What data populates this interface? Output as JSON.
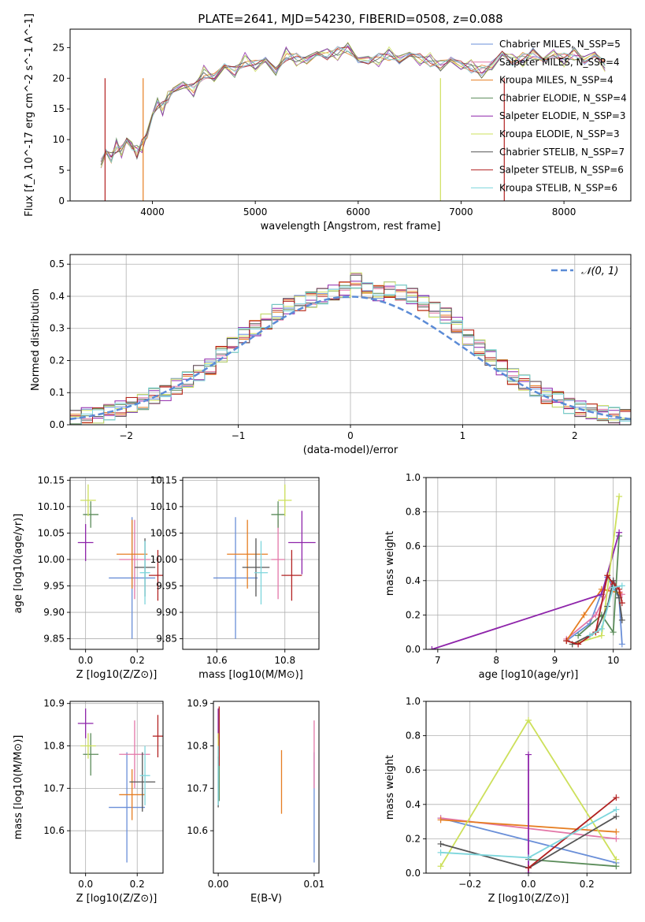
{
  "title": "PLATE=2641, MJD=54230, FIBERID=0508, z=0.088",
  "series_names": [
    "Chabrier MILES, N_SSP=5",
    "Salpeter MILES, N_SSP=4",
    "Kroupa MILES, N_SSP=4",
    "Chabrier ELODIE, N_SSP=4",
    "Salpeter ELODIE, N_SSP=3",
    "Kroupa ELODIE, N_SSP=3",
    "Chabrier STELIB, N_SSP=7",
    "Salpeter STELIB, N_SSP=6",
    "Kroupa STELIB, N_SSP=6"
  ],
  "series_colors": [
    "#6a8fd8",
    "#e377a8",
    "#e67e22",
    "#5b8c5a",
    "#8e24aa",
    "#cde05b",
    "#555555",
    "#b22222",
    "#7dd6dc"
  ],
  "chart_data": [
    {
      "type": "line",
      "title": "PLATE=2641, MJD=54230, FIBERID=0508, z=0.088",
      "xlabel": "wavelength [Angstrom, rest frame]",
      "ylabel": "Flux [f_λ 10^-17 erg cm^-2 s^-1 A^-1]",
      "xlim": [
        3200,
        8650
      ],
      "ylim": [
        0,
        28
      ],
      "xticks": [
        4000,
        5000,
        6000,
        7000,
        8000
      ],
      "yticks": [
        0,
        5,
        10,
        15,
        20,
        25
      ],
      "grid": false,
      "legend": "right",
      "x": [
        3500,
        3550,
        3600,
        3650,
        3700,
        3750,
        3800,
        3850,
        3900,
        3950,
        4000,
        4050,
        4100,
        4150,
        4200,
        4300,
        4400,
        4500,
        4600,
        4700,
        4800,
        4900,
        5000,
        5100,
        5200,
        5300,
        5400,
        5500,
        5600,
        5700,
        5800,
        5900,
        6000,
        6100,
        6200,
        6300,
        6400,
        6500,
        6600,
        6700,
        6800,
        6900,
        7000,
        7100,
        7200,
        7300,
        7400,
        7500,
        7600,
        7700,
        7800,
        7900,
        8000,
        8100,
        8200,
        8300,
        8400
      ],
      "y": [
        6,
        8,
        7,
        9,
        8,
        10,
        9,
        8,
        9,
        11,
        14,
        16,
        15,
        17,
        18,
        19,
        18,
        21,
        20,
        22,
        21,
        23,
        22,
        23,
        21,
        24,
        23,
        23,
        24,
        24,
        24,
        25,
        23,
        23,
        23,
        24,
        23,
        24,
        23,
        23,
        22,
        23,
        22,
        22,
        21,
        22,
        24,
        23,
        23,
        24,
        23,
        24,
        23,
        24,
        23,
        24,
        22
      ]
    },
    {
      "type": "line",
      "xlabel": "(data-model)/error",
      "ylabel": "Normed distribution",
      "xlim": [
        -2.5,
        2.5
      ],
      "ylim": [
        0,
        0.53
      ],
      "xticks": [
        -2,
        -1,
        0,
        1,
        2
      ],
      "yticks": [
        0.0,
        0.1,
        0.2,
        0.3,
        0.4,
        0.5
      ],
      "grid": true,
      "legend": "top-right",
      "series": [
        {
          "name": "𝒩(0, 1)",
          "function": "gaussian",
          "mean": 0,
          "sigma": 1
        }
      ],
      "histogram_centers": [
        -2.45,
        -2.35,
        -2.25,
        -2.15,
        -2.05,
        -1.95,
        -1.85,
        -1.75,
        -1.65,
        -1.55,
        -1.45,
        -1.35,
        -1.25,
        -1.15,
        -1.05,
        -0.95,
        -0.85,
        -0.75,
        -0.65,
        -0.55,
        -0.45,
        -0.35,
        -0.25,
        -0.15,
        -0.05,
        0.05,
        0.15,
        0.25,
        0.35,
        0.45,
        0.55,
        0.65,
        0.75,
        0.85,
        0.95,
        1.05,
        1.15,
        1.25,
        1.35,
        1.45,
        1.55,
        1.65,
        1.75,
        1.85,
        1.95,
        2.05,
        2.15,
        2.25,
        2.35,
        2.45
      ],
      "histogram_values": [
        0.02,
        0.03,
        0.03,
        0.04,
        0.05,
        0.06,
        0.07,
        0.09,
        0.1,
        0.12,
        0.14,
        0.16,
        0.18,
        0.22,
        0.25,
        0.28,
        0.3,
        0.32,
        0.35,
        0.37,
        0.38,
        0.39,
        0.4,
        0.41,
        0.42,
        0.45,
        0.42,
        0.41,
        0.42,
        0.41,
        0.4,
        0.38,
        0.36,
        0.34,
        0.31,
        0.27,
        0.24,
        0.21,
        0.18,
        0.15,
        0.13,
        0.11,
        0.09,
        0.08,
        0.06,
        0.05,
        0.04,
        0.035,
        0.03,
        0.025
      ]
    },
    {
      "type": "scatter",
      "xlabel": "Z [log10(Z/Z⊙)]",
      "ylabel": "age  [log10(age/yr)]",
      "xlim": [
        -0.06,
        0.3
      ],
      "ylim": [
        9.83,
        10.155
      ],
      "xticks": [
        0.0,
        0.2
      ],
      "yticks": [
        9.85,
        9.9,
        9.95,
        10.0,
        10.05,
        10.1,
        10.15
      ],
      "grid": true,
      "points": [
        {
          "x": 0.18,
          "y": 9.965,
          "xerr": 0.09,
          "yerr": 0.115
        },
        {
          "x": 0.19,
          "y": 10.0,
          "xerr": 0.06,
          "yerr": 0.075
        },
        {
          "x": 0.18,
          "y": 10.01,
          "xerr": 0.06,
          "yerr": 0.065
        },
        {
          "x": 0.02,
          "y": 10.085,
          "xerr": 0.03,
          "yerr": 0.025
        },
        {
          "x": 0.0,
          "y": 10.032,
          "xerr": 0.03,
          "yerr": 0.035
        },
        {
          "x": 0.01,
          "y": 10.112,
          "xerr": 0.03,
          "yerr": 0.03
        },
        {
          "x": 0.23,
          "y": 9.985,
          "xerr": 0.04,
          "yerr": 0.055
        },
        {
          "x": 0.28,
          "y": 9.97,
          "xerr": 0.035,
          "yerr": 0.048
        },
        {
          "x": 0.23,
          "y": 9.975,
          "xerr": 0.02,
          "yerr": 0.06
        }
      ]
    },
    {
      "type": "scatter",
      "xlabel": "mass [log10(M/M⊙)]",
      "ylabel": "",
      "xlim": [
        10.5,
        10.9
      ],
      "ylim": [
        9.83,
        10.155
      ],
      "xticks": [
        10.6,
        10.8
      ],
      "yticks": [
        9.85,
        9.9,
        9.95,
        10.0,
        10.05,
        10.1,
        10.15
      ],
      "grid": true,
      "points": [
        {
          "x": 10.655,
          "y": 9.965,
          "xerr": 0.065,
          "yerr": 0.115
        },
        {
          "x": 10.78,
          "y": 10.0,
          "xerr": 0.02,
          "yerr": 0.075
        },
        {
          "x": 10.69,
          "y": 10.01,
          "xerr": 0.06,
          "yerr": 0.065
        },
        {
          "x": 10.78,
          "y": 10.085,
          "xerr": 0.02,
          "yerr": 0.025
        },
        {
          "x": 10.85,
          "y": 10.032,
          "xerr": 0.04,
          "yerr": 0.06
        },
        {
          "x": 10.8,
          "y": 10.112,
          "xerr": 0.02,
          "yerr": 0.03
        },
        {
          "x": 10.715,
          "y": 9.985,
          "xerr": 0.04,
          "yerr": 0.055
        },
        {
          "x": 10.82,
          "y": 9.97,
          "xerr": 0.03,
          "yerr": 0.048
        },
        {
          "x": 10.73,
          "y": 9.975,
          "xerr": 0.02,
          "yerr": 0.06
        }
      ]
    },
    {
      "type": "line",
      "xlabel": "age  [log10(age/yr)]",
      "ylabel": "mass weight",
      "xlim": [
        6.8,
        10.3
      ],
      "ylim": [
        0,
        1.0
      ],
      "xticks": [
        7,
        8,
        9,
        10
      ],
      "yticks": [
        0.0,
        0.2,
        0.4,
        0.6,
        0.8,
        1.0
      ],
      "grid": true,
      "series": [
        {
          "x": [
            9.2,
            9.6,
            9.9,
            10.1,
            10.15
          ],
          "y": [
            0.05,
            0.15,
            0.42,
            0.3,
            0.03
          ]
        },
        {
          "x": [
            9.2,
            9.7,
            10.0,
            10.15
          ],
          "y": [
            0.06,
            0.2,
            0.4,
            0.32
          ]
        },
        {
          "x": [
            9.2,
            9.5,
            9.8,
            10.1
          ],
          "y": [
            0.05,
            0.2,
            0.35,
            0.33
          ]
        },
        {
          "x": [
            9.4,
            9.8,
            10.0,
            10.1
          ],
          "y": [
            0.08,
            0.2,
            0.1,
            0.66
          ]
        },
        {
          "x": [
            6.9,
            9.8,
            10.1
          ],
          "y": [
            0.0,
            0.32,
            0.68
          ]
        },
        {
          "x": [
            9.3,
            9.8,
            10.1
          ],
          "y": [
            0.03,
            0.08,
            0.89
          ]
        },
        {
          "x": [
            9.3,
            9.7,
            9.9,
            10.0,
            10.1,
            10.15
          ],
          "y": [
            0.03,
            0.1,
            0.25,
            0.4,
            0.3,
            0.17
          ]
        },
        {
          "x": [
            9.2,
            9.4,
            9.7,
            9.9,
            10.0,
            10.1,
            10.15
          ],
          "y": [
            0.05,
            0.03,
            0.1,
            0.43,
            0.38,
            0.35,
            0.27
          ]
        },
        {
          "x": [
            9.6,
            9.8,
            10.0,
            10.15
          ],
          "y": [
            0.08,
            0.12,
            0.36,
            0.37
          ]
        }
      ]
    },
    {
      "type": "scatter",
      "xlabel": "Z [log10(Z/Z⊙)]",
      "ylabel": "mass [log10(M/M⊙)]",
      "xlim": [
        -0.06,
        0.3
      ],
      "ylim": [
        10.5,
        10.905
      ],
      "xticks": [
        0.0,
        0.2
      ],
      "yticks": [
        10.6,
        10.7,
        10.8,
        10.9
      ],
      "grid": true,
      "points": [
        {
          "x": 0.16,
          "y": 10.655,
          "xerr": 0.07,
          "yerr": 0.13
        },
        {
          "x": 0.19,
          "y": 10.78,
          "xerr": 0.06,
          "yerr": 0.08
        },
        {
          "x": 0.18,
          "y": 10.685,
          "xerr": 0.05,
          "yerr": 0.06
        },
        {
          "x": 0.02,
          "y": 10.78,
          "xerr": 0.03,
          "yerr": 0.05
        },
        {
          "x": 0.0,
          "y": 10.853,
          "xerr": 0.03,
          "yerr": 0.035
        },
        {
          "x": 0.01,
          "y": 10.8,
          "xerr": 0.03,
          "yerr": 0.03
        },
        {
          "x": 0.22,
          "y": 10.715,
          "xerr": 0.05,
          "yerr": 0.07
        },
        {
          "x": 0.28,
          "y": 10.823,
          "xerr": 0.02,
          "yerr": 0.05
        },
        {
          "x": 0.23,
          "y": 10.73,
          "xerr": 0.02,
          "yerr": 0.07
        }
      ]
    },
    {
      "type": "scatter",
      "xlabel": "E(B-V)",
      "ylabel": "",
      "xlim": [
        -0.0005,
        0.0105
      ],
      "ylim": [
        10.5,
        10.905
      ],
      "xticks": [
        0.0,
        0.01
      ],
      "yticks": [
        10.6,
        10.7,
        10.8,
        10.9
      ],
      "grid": false,
      "points": [
        {
          "x": 0.01,
          "y": 10.655,
          "yerr": 0.13
        },
        {
          "x": 0.01,
          "y": 10.78,
          "yerr": 0.08
        },
        {
          "x": 0.0066,
          "y": 10.715,
          "yerr": 0.075
        },
        {
          "x": 0.0001,
          "y": 10.78,
          "yerr": 0.11
        },
        {
          "x": 0.0,
          "y": 10.853,
          "yerr": 0.035
        },
        {
          "x": 0.0,
          "y": 10.8,
          "yerr": 0.03
        },
        {
          "x": 0.0,
          "y": 10.715,
          "yerr": 0.06
        },
        {
          "x": 0.0001,
          "y": 10.823,
          "yerr": 0.07
        },
        {
          "x": 0.0,
          "y": 10.73,
          "yerr": 0.07
        }
      ]
    },
    {
      "type": "line",
      "xlabel": "Z [log10(Z/Z⊙)]",
      "ylabel": "mass weight",
      "xlim": [
        -0.35,
        0.35
      ],
      "ylim": [
        0,
        1.0
      ],
      "xticks": [
        -0.2,
        0.0,
        0.2
      ],
      "yticks": [
        0.0,
        0.2,
        0.4,
        0.6,
        0.8,
        1.0
      ],
      "grid": true,
      "series": [
        {
          "x": [
            -0.3,
            0.3
          ],
          "y": [
            0.32,
            0.06
          ]
        },
        {
          "x": [
            -0.3,
            0.3
          ],
          "y": [
            0.32,
            0.2
          ]
        },
        {
          "x": [
            -0.3,
            0.3
          ],
          "y": [
            0.31,
            0.24
          ]
        },
        {
          "x": [
            0.0,
            0.3
          ],
          "y": [
            0.08,
            0.04
          ]
        },
        {
          "x": [
            0.0,
            0.0
          ],
          "y": [
            0.0,
            0.69
          ]
        },
        {
          "x": [
            -0.3,
            0.0,
            0.3
          ],
          "y": [
            0.04,
            0.89,
            0.08
          ]
        },
        {
          "x": [
            -0.3,
            0.0,
            0.3
          ],
          "y": [
            0.17,
            0.03,
            0.33
          ]
        },
        {
          "x": [
            0.0,
            0.3
          ],
          "y": [
            0.03,
            0.44
          ]
        },
        {
          "x": [
            -0.3,
            0.0,
            0.3
          ],
          "y": [
            0.12,
            0.09,
            0.37
          ]
        }
      ]
    }
  ]
}
